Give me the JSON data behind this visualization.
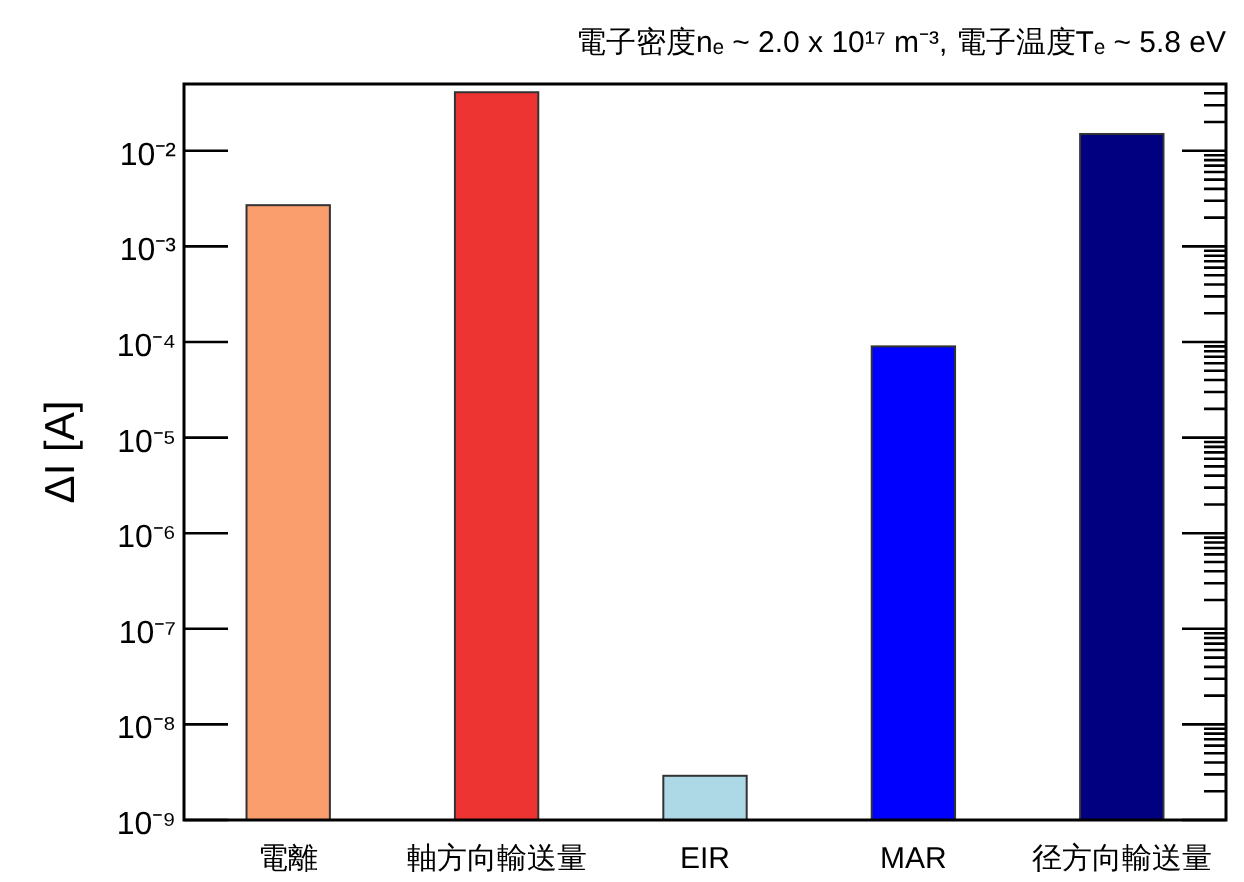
{
  "chart_data": {
    "type": "bar",
    "title": "電子密度nₑ ~ 2.0 x 10¹⁷ m⁻³, 電子温度Tₑ ~ 5.8 eV",
    "ylabel": "ΔI [A]",
    "categories": [
      "電離",
      "軸方向輸送量",
      "EIR",
      "MAR",
      "径方向輸送量"
    ],
    "values": [
      0.0027,
      0.041,
      2.9e-09,
      9e-05,
      0.015
    ],
    "colors": [
      "#fa9e6e",
      "#ee3333",
      "#add8e6",
      "#0000ff",
      "#000080"
    ],
    "log": true,
    "ylim": [
      1e-09,
      0.05
    ],
    "yticks": [
      {
        "value": 1e-09,
        "label": "10⁻⁹"
      },
      {
        "value": 1e-08,
        "label": "10⁻⁸"
      },
      {
        "value": 1e-07,
        "label": "10⁻⁷"
      },
      {
        "value": 1e-06,
        "label": "10⁻⁶"
      },
      {
        "value": 1e-05,
        "label": "10⁻⁵"
      },
      {
        "value": 0.0001,
        "label": "10⁻⁴"
      },
      {
        "value": 0.001,
        "label": "10⁻³"
      },
      {
        "value": 0.01,
        "label": "10⁻²"
      }
    ]
  }
}
